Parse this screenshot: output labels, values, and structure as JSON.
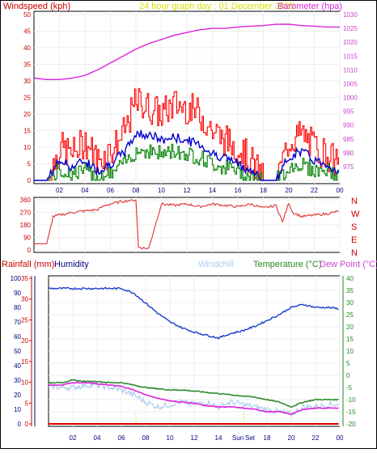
{
  "header": {
    "windspeed_label": "Windspeed (kph)",
    "graph_title": "24 hour graph day : 01 December 2025",
    "barometer_label": "Barometer (hpa)"
  },
  "lower_header": {
    "rainfall_label": "Rainfall (mm)",
    "humidity_label": "Humidity",
    "windchill_label": "Windchill",
    "temperature_label": "Temperature (°C)",
    "dewpoint_label": "Dew Point (°C)"
  },
  "colors": {
    "windspeed": "#ff0000",
    "gust_fill": "#ff0000",
    "avg_wind": "#0000cc",
    "wind_low": "#008000",
    "barometer": "#dd22dd",
    "direction": "#e03030",
    "humidity": "#1a3ccc",
    "windchill": "#aaccee",
    "temperature": "#2e8b2e",
    "dewpoint": "#dd22dd",
    "rainfall": "#dd0000",
    "title": "#dddd00",
    "left_axis_red": "#cc0000",
    "left_axis_navy": "#000080",
    "right_axis_green": "#228822",
    "right_axis_magenta": "#cc44cc"
  },
  "time_axis": {
    "top_ticks": [
      "02",
      "04",
      "06",
      "08",
      "10",
      "12",
      "14",
      "16",
      "18",
      "20",
      "22",
      "00"
    ],
    "bottom_ticks": [
      "02",
      "04",
      "06",
      "08",
      "10",
      "12",
      "14",
      "Sun",
      "Set",
      "18",
      "20",
      "22",
      "00"
    ],
    "sunrise_hour": 7.2,
    "sunset_hour": 16.1
  },
  "chart_data": [
    {
      "type": "line",
      "name_ref": "wind_and_pressure",
      "left_axis": {
        "label": "Windspeed (kph)",
        "ylim": [
          0,
          50
        ],
        "ticks": [
          "0",
          "5",
          "10",
          "15",
          "20",
          "25",
          "30",
          "35",
          "40",
          "45",
          "50"
        ]
      },
      "right_axis": {
        "label": "Barometer (hpa)",
        "ylim": [
          970,
          1030
        ],
        "ticks": [
          "975",
          "980",
          "985",
          "990",
          "995",
          "1000",
          "1005",
          "1010",
          "1015",
          "1020",
          "1025",
          "1030"
        ]
      },
      "x_hours": [
        0,
        1,
        2,
        3,
        4,
        5,
        6,
        7,
        8,
        9,
        10,
        11,
        12,
        13,
        14,
        15,
        16,
        17,
        18,
        19,
        20,
        21,
        22,
        23,
        24
      ],
      "series": [
        {
          "name": "Barometer",
          "axis": "right",
          "values": [
            1007,
            1006.5,
            1006.5,
            1007,
            1008,
            1010,
            1012.5,
            1015,
            1017.5,
            1019.5,
            1021,
            1022.5,
            1023.5,
            1024.5,
            1025,
            1025,
            1025.5,
            1025.8,
            1026,
            1026.5,
            1026.5,
            1026,
            1025.8,
            1025.5,
            1025.5
          ]
        },
        {
          "name": "Gust",
          "axis": "left",
          "values": [
            0,
            0,
            10,
            8,
            12,
            6,
            9,
            14,
            24,
            22,
            20,
            23,
            22,
            20,
            15,
            12,
            10,
            6,
            0,
            0,
            12,
            14,
            10,
            8,
            4
          ]
        },
        {
          "name": "Average",
          "axis": "left",
          "values": [
            0,
            0,
            6,
            4,
            6,
            3,
            5,
            8,
            14,
            14,
            12,
            13,
            12,
            11,
            8,
            7,
            5,
            3,
            0,
            0,
            7,
            9,
            6,
            5,
            2
          ]
        },
        {
          "name": "Low",
          "axis": "left",
          "values": [
            0,
            0,
            3,
            2,
            3,
            1,
            2,
            5,
            9,
            9,
            8,
            9,
            8,
            7,
            5,
            4,
            3,
            1,
            0,
            0,
            4,
            5,
            3,
            3,
            1
          ]
        }
      ]
    },
    {
      "type": "line",
      "name_ref": "wind_direction",
      "right_axis": {
        "ylim": [
          0,
          360
        ],
        "ticks": [
          "N",
          "W",
          "S",
          "E",
          "N"
        ]
      },
      "left_axis": {
        "ylim": [
          0,
          360
        ],
        "ticks": [
          "0",
          "90",
          "180",
          "270",
          "360"
        ]
      },
      "x_hours": [
        0,
        1,
        1.5,
        2,
        3,
        4,
        5,
        5.6,
        6,
        6.5,
        7,
        8,
        8.2,
        9,
        10,
        11,
        12,
        13,
        14,
        15,
        16,
        17,
        18,
        19,
        19.5,
        20,
        20.3,
        21,
        22,
        23,
        24
      ],
      "values": [
        45,
        45,
        240,
        250,
        270,
        280,
        290,
        320,
        330,
        340,
        350,
        360,
        20,
        10,
        330,
        320,
        330,
        310,
        330,
        320,
        310,
        330,
        300,
        320,
        200,
        340,
        270,
        240,
        250,
        260,
        280
      ]
    },
    {
      "type": "line",
      "name_ref": "temperature_humidity",
      "left_axis_outer": {
        "label": "Rainfall (mm)",
        "ylim": [
          0,
          35
        ],
        "ticks": [
          "0",
          "5",
          "10",
          "15",
          "20",
          "25",
          "30",
          "35"
        ]
      },
      "left_axis_inner": {
        "label": "Humidity",
        "ylim": [
          0,
          100
        ],
        "ticks": [
          "0",
          "10",
          "20",
          "30",
          "40",
          "50",
          "60",
          "70",
          "80",
          "90",
          "100"
        ]
      },
      "right_axis": {
        "label": "Temperature (°C)",
        "ylim": [
          -20,
          40
        ],
        "ticks": [
          "-20",
          "-15",
          "-10",
          "-5",
          "0",
          "5",
          "10",
          "15",
          "20",
          "25",
          "30",
          "35",
          "40"
        ]
      },
      "x_hours": [
        0,
        1,
        2,
        3,
        4,
        5,
        6,
        7,
        8,
        9,
        10,
        11,
        12,
        13,
        14,
        15,
        16,
        17,
        18,
        19,
        20,
        21,
        22,
        23,
        24
      ],
      "series": [
        {
          "name": "Humidity",
          "axis": "left_inner",
          "values": [
            93,
            93,
            93,
            93,
            93,
            93,
            93,
            90,
            83,
            76,
            70,
            66,
            63,
            61,
            59,
            62,
            64,
            67,
            71,
            75,
            80,
            82,
            80,
            80,
            79
          ]
        },
        {
          "name": "Temperature",
          "axis": "right",
          "values": [
            -3,
            -3,
            -2,
            -2.5,
            -2.5,
            -3,
            -3,
            -4,
            -5,
            -5.5,
            -6,
            -6,
            -6.5,
            -7,
            -7.5,
            -8,
            -8.5,
            -9,
            -10,
            -11,
            -13,
            -11,
            -10,
            -10,
            -10
          ]
        },
        {
          "name": "Dew Point",
          "axis": "right",
          "values": [
            -4,
            -4,
            -3,
            -3,
            -3.5,
            -4,
            -4.5,
            -6,
            -8,
            -9.5,
            -10.5,
            -11,
            -11.5,
            -12.5,
            -13,
            -13,
            -13.5,
            -14,
            -15,
            -15,
            -16,
            -14,
            -13.5,
            -13.5,
            -13.5
          ]
        },
        {
          "name": "Windchill",
          "axis": "right",
          "values": [
            -4,
            -5,
            -5,
            -4,
            -4,
            -5,
            -6,
            -8,
            -11,
            -13,
            -12,
            -11,
            -12,
            -11,
            -13,
            -11,
            -12,
            -13,
            -14,
            -15,
            -16,
            -13,
            -13,
            -12,
            -12
          ]
        },
        {
          "name": "Rainfall",
          "axis": "left_outer",
          "values": [
            0,
            0,
            0,
            0,
            0,
            0,
            0,
            0,
            0,
            0,
            0,
            0,
            0,
            0,
            0,
            0,
            0,
            0,
            0,
            0,
            0,
            0,
            0,
            0,
            0
          ]
        }
      ]
    }
  ]
}
